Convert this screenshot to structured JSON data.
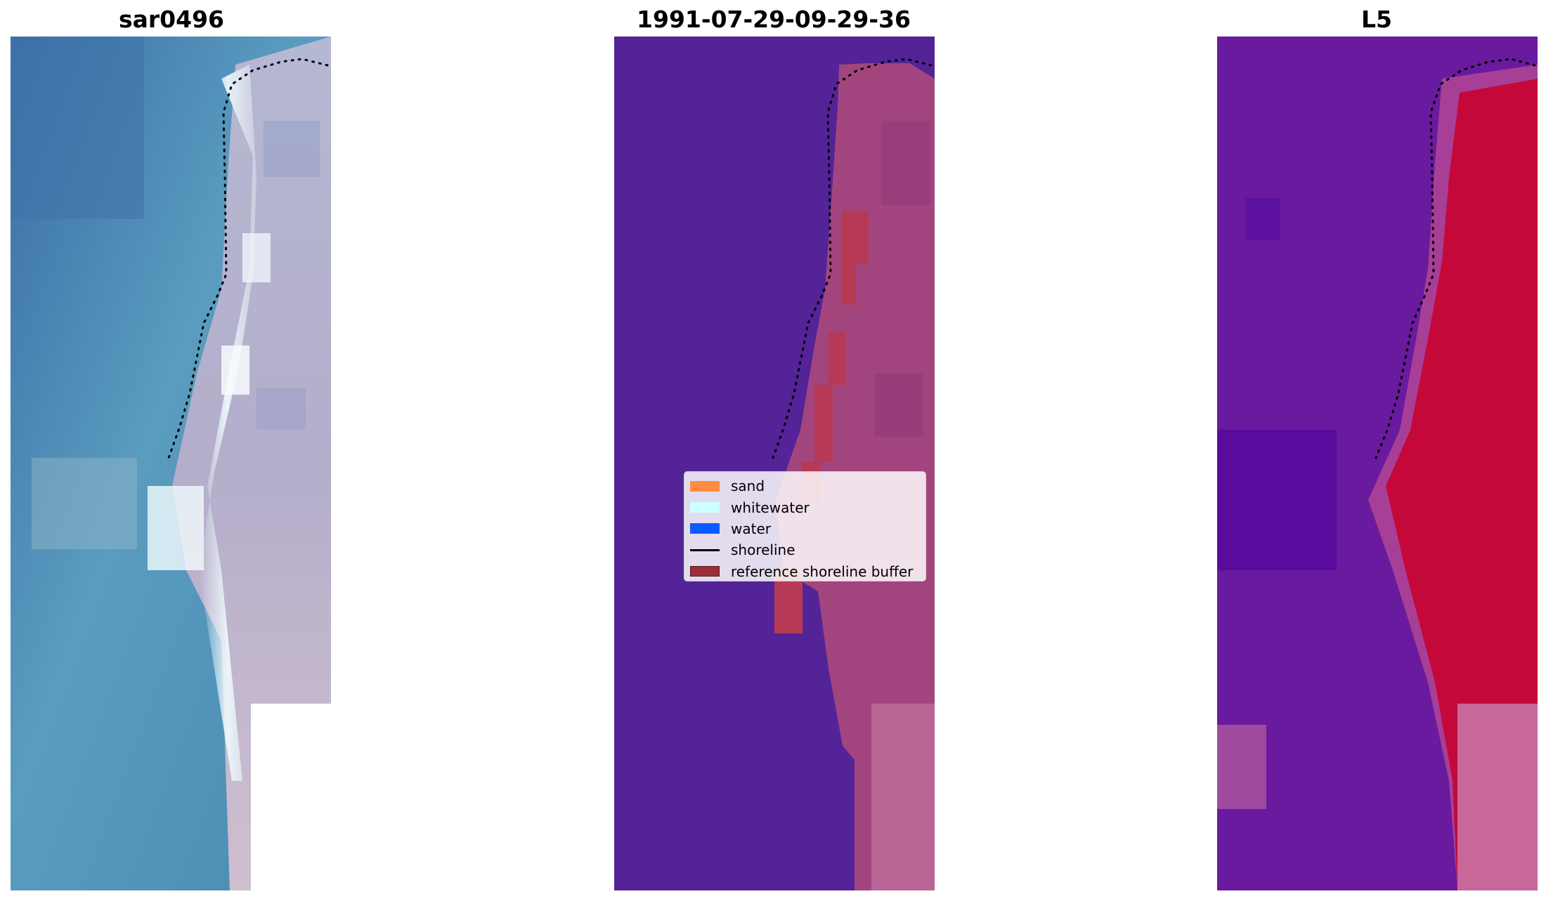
{
  "panels": [
    {
      "title": "sar0496",
      "kind": "rgb-composite"
    },
    {
      "title": "1991-07-29-09-29-36",
      "kind": "classified-overlay"
    },
    {
      "title": "L5",
      "kind": "index-map"
    }
  ],
  "legend": {
    "items": [
      {
        "label": "sand",
        "color": "#ff8c3f",
        "type": "patch"
      },
      {
        "label": "whitewater",
        "color": "#ccffff",
        "type": "patch"
      },
      {
        "label": "water",
        "color": "#0a5bff",
        "type": "patch"
      },
      {
        "label": "shoreline",
        "color": "#000000",
        "type": "line"
      },
      {
        "label": "reference shoreline buffer",
        "color": "#9a2f3a",
        "type": "patch"
      }
    ]
  }
}
